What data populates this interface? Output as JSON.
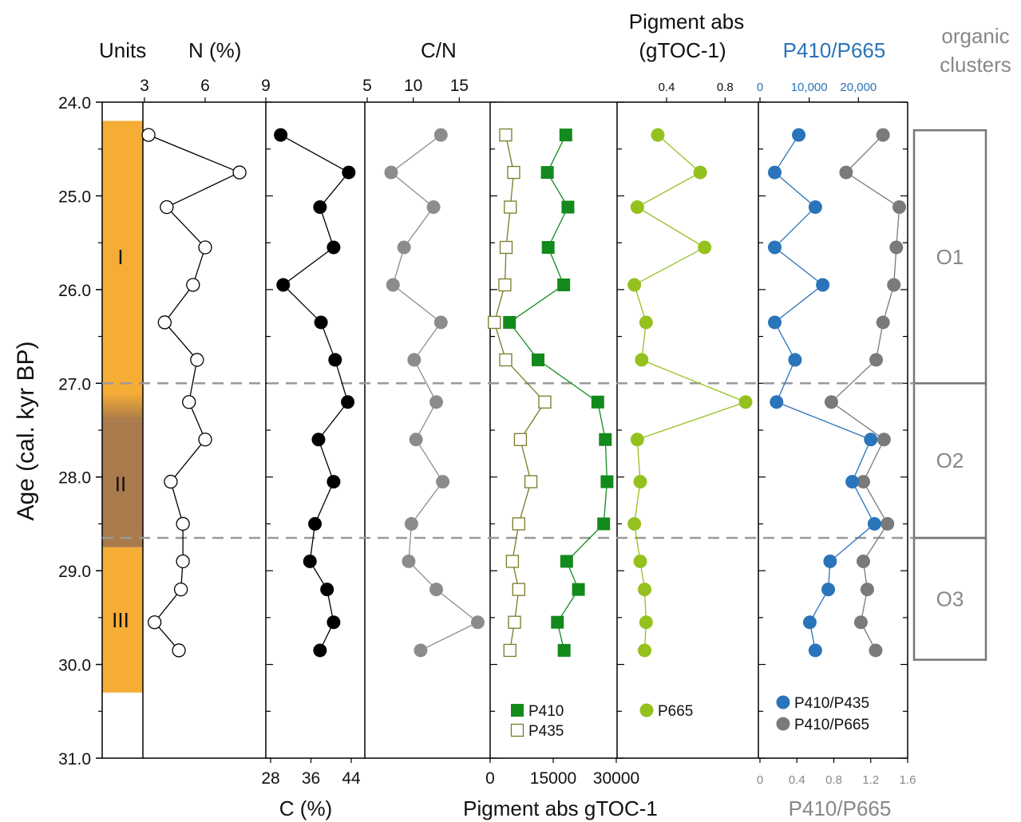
{
  "figure": {
    "yaxis": {
      "label": "Age (cal. kyr BP)",
      "ylim": [
        24.0,
        31.0
      ],
      "ticks": [
        "24.0",
        "25.0",
        "26.0",
        "27.0",
        "28.0",
        "29.0",
        "30.0",
        "31.0"
      ],
      "reversed": true
    },
    "cluster_boundaries": [
      27.0,
      28.65
    ],
    "units": {
      "header": "Units",
      "bands": [
        {
          "label": "I",
          "from": 24.2,
          "to": 27.1,
          "color": "#f5ad36"
        },
        {
          "label": "",
          "from": 27.1,
          "to": 27.4,
          "color": "gradient"
        },
        {
          "label": "II",
          "from": 27.4,
          "to": 28.75,
          "color": "#a97a4b"
        },
        {
          "label": "III",
          "from": 28.75,
          "to": 30.3,
          "color": "#f5ad36"
        }
      ]
    },
    "clusters": {
      "header_line1": "organic",
      "header_line2": "clusters",
      "boxes": [
        {
          "label": "O1",
          "from": 24.3,
          "to": 27.0
        },
        {
          "label": "O2",
          "from": 27.0,
          "to": 28.65
        },
        {
          "label": "O3",
          "from": 28.65,
          "to": 29.95
        }
      ]
    }
  },
  "chart_data": [
    {
      "type": "line",
      "id": "N",
      "title": "N (%)",
      "xlim": [
        3,
        9
      ],
      "xticks": [
        "3",
        "6",
        "9"
      ],
      "axis_position": "top",
      "series": [
        {
          "marker": "open-circle",
          "color": "#000000",
          "x": [
            3.2,
            7.7,
            4.1,
            6.0,
            5.4,
            4.0,
            5.6,
            5.2,
            6.0,
            4.3,
            4.9,
            4.9,
            4.8,
            3.5,
            4.7
          ],
          "y": [
            24.35,
            24.75,
            25.12,
            25.55,
            25.95,
            26.35,
            26.75,
            27.2,
            27.6,
            28.05,
            28.5,
            28.9,
            29.2,
            29.55,
            29.85
          ]
        }
      ]
    },
    {
      "type": "line",
      "id": "C",
      "xlabel": "C (%)",
      "xlim": [
        28,
        44
      ],
      "xticks": [
        "28",
        "36",
        "44"
      ],
      "axis_position": "bottom",
      "series": [
        {
          "marker": "filled-circle",
          "color": "#000000",
          "x": [
            30.0,
            43.5,
            37.8,
            40.5,
            30.5,
            38.0,
            40.8,
            43.3,
            37.5,
            40.5,
            36.8,
            35.8,
            39.2,
            40.5,
            37.8
          ],
          "y": [
            24.35,
            24.75,
            25.12,
            25.55,
            25.95,
            26.35,
            26.75,
            27.2,
            27.6,
            28.05,
            28.5,
            28.9,
            29.2,
            29.55,
            29.85
          ]
        }
      ]
    },
    {
      "type": "line",
      "id": "CN",
      "title": "C/N",
      "xlim": [
        5,
        18
      ],
      "xticks": [
        "5",
        "10",
        "15"
      ],
      "axis_position": "top",
      "series": [
        {
          "marker": "filled-circle",
          "color": "#8c8c8c",
          "x": [
            13.0,
            7.6,
            12.2,
            9.0,
            7.8,
            13.0,
            10.1,
            12.5,
            10.3,
            13.2,
            9.8,
            9.5,
            12.5,
            17.0,
            10.8
          ],
          "y": [
            24.35,
            24.75,
            25.12,
            25.55,
            25.95,
            26.35,
            26.75,
            27.2,
            27.6,
            28.05,
            28.5,
            28.9,
            29.2,
            29.55,
            29.85
          ]
        }
      ]
    },
    {
      "type": "line",
      "id": "pigments",
      "xlabel": "Pigment abs gTOC-1",
      "xlim": [
        0,
        30000
      ],
      "xticks": [
        "0",
        "15000",
        "30000"
      ],
      "axis_position": "bottom",
      "series": [
        {
          "name": "P410",
          "marker": "filled-square",
          "color": "#138a1c",
          "x": [
            18000,
            13600,
            18500,
            13800,
            17500,
            4600,
            11400,
            25600,
            27400,
            27800,
            27000,
            18200,
            21000,
            16000,
            17600
          ],
          "y": [
            24.35,
            24.75,
            25.12,
            25.55,
            25.95,
            26.35,
            26.75,
            27.2,
            27.6,
            28.05,
            28.5,
            28.9,
            29.2,
            29.55,
            29.85
          ]
        },
        {
          "name": "P435",
          "marker": "open-square",
          "color": "#7a7a28",
          "x": [
            3700,
            5600,
            4800,
            3800,
            3500,
            1000,
            3700,
            13000,
            7200,
            9700,
            6800,
            5300,
            6800,
            5800,
            4700
          ],
          "y": [
            24.35,
            24.75,
            25.12,
            25.55,
            25.95,
            26.35,
            26.75,
            27.2,
            27.6,
            28.05,
            28.5,
            28.9,
            29.2,
            29.55,
            29.85
          ]
        }
      ]
    },
    {
      "type": "line",
      "id": "P665",
      "title_line1": "Pigment abs",
      "title_line2": "(gTOC-1)",
      "xlim": [
        0.1,
        1.0
      ],
      "xticks": [
        "0.4",
        "0.8"
      ],
      "axis_position": "top",
      "series": [
        {
          "name": "P665",
          "marker": "filled-circle",
          "color": "#95c11f",
          "x": [
            0.34,
            0.63,
            0.2,
            0.66,
            0.18,
            0.26,
            0.23,
            0.94,
            0.2,
            0.22,
            0.18,
            0.22,
            0.25,
            0.26,
            0.25
          ],
          "y": [
            24.35,
            24.75,
            25.12,
            25.55,
            25.95,
            26.35,
            26.75,
            27.2,
            27.6,
            28.05,
            28.5,
            28.9,
            29.2,
            29.55,
            29.85
          ]
        }
      ]
    },
    {
      "type": "line",
      "id": "ratios",
      "title": "P410/P665",
      "xlabel": "P410/P665",
      "xlim_bottom": [
        0,
        1.6
      ],
      "xticks_bottom": [
        "0",
        "0.4",
        "0.8",
        "1.2",
        "1.6"
      ],
      "xlim_top": [
        0,
        30000
      ],
      "xticks_top": [
        "0",
        "10,000",
        "20,000"
      ],
      "series": [
        {
          "name": "P410/P435",
          "marker": "filled-circle",
          "color": "#2a74b9",
          "axis": "bottom",
          "x": [
            0.42,
            0.16,
            0.6,
            0.16,
            0.68,
            0.16,
            0.38,
            0.18,
            1.2,
            1.0,
            1.24,
            0.76,
            0.74,
            0.54,
            0.6
          ],
          "y": [
            24.35,
            24.75,
            25.12,
            25.55,
            25.95,
            26.35,
            26.75,
            27.2,
            27.6,
            28.05,
            28.5,
            28.9,
            29.2,
            29.55,
            29.85
          ]
        },
        {
          "name": "P410/P665",
          "marker": "filled-circle",
          "color": "#7a7a7a",
          "axis": "top",
          "x": [
            25000,
            17500,
            28300,
            27700,
            27200,
            25000,
            23600,
            14500,
            25200,
            21000,
            25900,
            21000,
            21800,
            20500,
            23500
          ],
          "y": [
            24.35,
            24.75,
            25.12,
            25.55,
            25.95,
            26.35,
            26.75,
            27.2,
            27.6,
            28.05,
            28.5,
            28.9,
            29.2,
            29.55,
            29.85
          ]
        }
      ]
    }
  ]
}
